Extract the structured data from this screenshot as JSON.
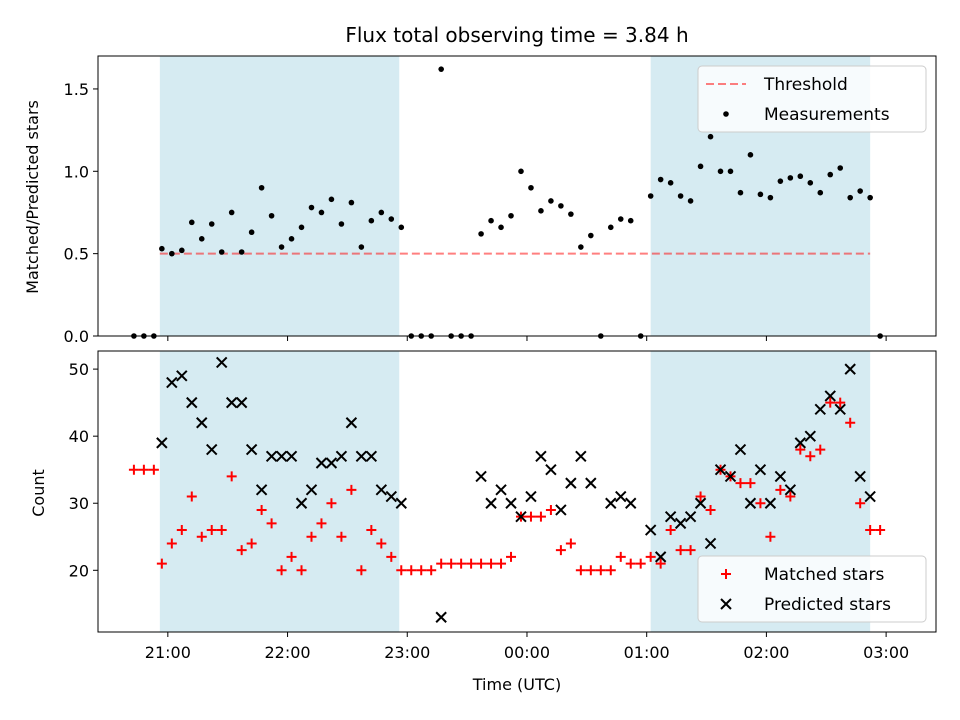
{
  "chart_data": [
    {
      "type": "scatter",
      "title": "Flux total observing time = 3.84 h",
      "ylabel": "Matched/Predicted stars",
      "xlabel": "",
      "ylim": [
        0,
        1.7
      ],
      "yticks": [
        "0.0",
        "0.5",
        "1.0",
        "1.5"
      ],
      "xlim": [
        "20:25",
        "03:25"
      ],
      "shaded_intervals": [
        [
          "20:56",
          "22:56"
        ],
        [
          "01:02",
          "02:52"
        ]
      ],
      "shade_color": "#add8e6",
      "legend_position": "upper right",
      "series": [
        {
          "name": "Threshold",
          "style": "dashed-line",
          "color": "#ff0000",
          "x": [
            "20:56",
            "02:52"
          ],
          "y": [
            0.5,
            0.5
          ]
        },
        {
          "name": "Measurements",
          "style": "dot",
          "color": "#000000",
          "points": [
            [
              "20:43",
              0
            ],
            [
              "20:48",
              0
            ],
            [
              "20:53",
              0
            ],
            [
              "20:57",
              0.53
            ],
            [
              "21:02",
              0.5
            ],
            [
              "21:07",
              0.52
            ],
            [
              "21:12",
              0.69
            ],
            [
              "21:17",
              0.59
            ],
            [
              "21:22",
              0.68
            ],
            [
              "21:27",
              0.51
            ],
            [
              "21:32",
              0.75
            ],
            [
              "21:37",
              0.51
            ],
            [
              "21:42",
              0.63
            ],
            [
              "21:47",
              0.9
            ],
            [
              "21:52",
              0.73
            ],
            [
              "21:57",
              0.54
            ],
            [
              "22:02",
              0.59
            ],
            [
              "22:07",
              0.66
            ],
            [
              "22:12",
              0.78
            ],
            [
              "22:17",
              0.75
            ],
            [
              "22:22",
              0.83
            ],
            [
              "22:27",
              0.68
            ],
            [
              "22:32",
              0.81
            ],
            [
              "22:37",
              0.54
            ],
            [
              "22:42",
              0.7
            ],
            [
              "22:47",
              0.75
            ],
            [
              "22:52",
              0.71
            ],
            [
              "22:57",
              0.66
            ],
            [
              "23:02",
              0
            ],
            [
              "23:07",
              0
            ],
            [
              "23:12",
              0
            ],
            [
              "23:17",
              1.62
            ],
            [
              "23:22",
              0
            ],
            [
              "23:27",
              0
            ],
            [
              "23:32",
              0
            ],
            [
              "23:37",
              0.62
            ],
            [
              "23:42",
              0.7
            ],
            [
              "23:47",
              0.66
            ],
            [
              "23:52",
              0.73
            ],
            [
              "23:57",
              1.0
            ],
            [
              "00:02",
              0.9
            ],
            [
              "00:07",
              0.76
            ],
            [
              "00:12",
              0.82
            ],
            [
              "00:17",
              0.79
            ],
            [
              "00:22",
              0.74
            ],
            [
              "00:27",
              0.54
            ],
            [
              "00:32",
              0.61
            ],
            [
              "00:37",
              0
            ],
            [
              "00:42",
              0.66
            ],
            [
              "00:47",
              0.71
            ],
            [
              "00:52",
              0.7
            ],
            [
              "00:57",
              0
            ],
            [
              "01:02",
              0.85
            ],
            [
              "01:07",
              0.95
            ],
            [
              "01:12",
              0.93
            ],
            [
              "01:17",
              0.85
            ],
            [
              "01:22",
              0.82
            ],
            [
              "01:27",
              1.03
            ],
            [
              "01:32",
              1.21
            ],
            [
              "01:37",
              1.0
            ],
            [
              "01:42",
              1.0
            ],
            [
              "01:47",
              0.87
            ],
            [
              "01:52",
              1.1
            ],
            [
              "01:57",
              0.86
            ],
            [
              "02:02",
              0.84
            ],
            [
              "02:07",
              0.94
            ],
            [
              "02:12",
              0.96
            ],
            [
              "02:17",
              0.97
            ],
            [
              "02:22",
              0.93
            ],
            [
              "02:27",
              0.87
            ],
            [
              "02:32",
              0.98
            ],
            [
              "02:37",
              1.02
            ],
            [
              "02:42",
              0.84
            ],
            [
              "02:47",
              0.88
            ],
            [
              "02:52",
              0.84
            ],
            [
              "02:57",
              0
            ]
          ]
        }
      ]
    },
    {
      "type": "scatter",
      "title": "",
      "xlabel": "Time (UTC)",
      "ylabel": "Count",
      "ylim": [
        10.8,
        52.7
      ],
      "yticks": [
        "20",
        "30",
        "40",
        "50"
      ],
      "xticks": [
        "21:00",
        "22:00",
        "23:00",
        "00:00",
        "01:00",
        "02:00",
        "03:00"
      ],
      "xlim": [
        "20:25",
        "03:25"
      ],
      "shaded_intervals": [
        [
          "20:56",
          "22:56"
        ],
        [
          "01:02",
          "02:52"
        ]
      ],
      "shade_color": "#add8e6",
      "legend_position": "lower right",
      "series": [
        {
          "name": "Matched stars",
          "style": "plus",
          "color": "#ff0000",
          "points": [
            [
              "20:43",
              35
            ],
            [
              "20:48",
              35
            ],
            [
              "20:53",
              35
            ],
            [
              "20:57",
              21
            ],
            [
              "21:02",
              24
            ],
            [
              "21:07",
              26
            ],
            [
              "21:12",
              31
            ],
            [
              "21:17",
              25
            ],
            [
              "21:22",
              26
            ],
            [
              "21:27",
              26
            ],
            [
              "21:32",
              34
            ],
            [
              "21:37",
              23
            ],
            [
              "21:42",
              24
            ],
            [
              "21:47",
              29
            ],
            [
              "21:52",
              27
            ],
            [
              "21:57",
              20
            ],
            [
              "22:02",
              22
            ],
            [
              "22:07",
              20
            ],
            [
              "22:12",
              25
            ],
            [
              "22:17",
              27
            ],
            [
              "22:22",
              30
            ],
            [
              "22:27",
              25
            ],
            [
              "22:32",
              32
            ],
            [
              "22:37",
              20
            ],
            [
              "22:42",
              26
            ],
            [
              "22:47",
              24
            ],
            [
              "22:52",
              22
            ],
            [
              "22:57",
              20
            ],
            [
              "23:02",
              20
            ],
            [
              "23:07",
              20
            ],
            [
              "23:12",
              20
            ],
            [
              "23:17",
              21
            ],
            [
              "23:22",
              21
            ],
            [
              "23:27",
              21
            ],
            [
              "23:32",
              21
            ],
            [
              "23:37",
              21
            ],
            [
              "23:42",
              21
            ],
            [
              "23:47",
              21
            ],
            [
              "23:52",
              22
            ],
            [
              "23:57",
              28
            ],
            [
              "00:02",
              28
            ],
            [
              "00:07",
              28
            ],
            [
              "00:12",
              29
            ],
            [
              "00:17",
              23
            ],
            [
              "00:22",
              24
            ],
            [
              "00:27",
              20
            ],
            [
              "00:32",
              20
            ],
            [
              "00:37",
              20
            ],
            [
              "00:42",
              20
            ],
            [
              "00:47",
              22
            ],
            [
              "00:52",
              21
            ],
            [
              "00:57",
              21
            ],
            [
              "01:02",
              22
            ],
            [
              "01:07",
              21
            ],
            [
              "01:12",
              26
            ],
            [
              "01:17",
              23
            ],
            [
              "01:22",
              23
            ],
            [
              "01:27",
              31
            ],
            [
              "01:32",
              29
            ],
            [
              "01:37",
              35
            ],
            [
              "01:42",
              34
            ],
            [
              "01:47",
              33
            ],
            [
              "01:52",
              33
            ],
            [
              "01:57",
              30
            ],
            [
              "02:02",
              25
            ],
            [
              "02:07",
              32
            ],
            [
              "02:12",
              31
            ],
            [
              "02:17",
              38
            ],
            [
              "02:22",
              37
            ],
            [
              "02:27",
              38
            ],
            [
              "02:32",
              45
            ],
            [
              "02:37",
              45
            ],
            [
              "02:42",
              42
            ],
            [
              "02:47",
              30
            ],
            [
              "02:52",
              26
            ],
            [
              "02:57",
              26
            ]
          ]
        },
        {
          "name": "Predicted stars",
          "style": "cross",
          "color": "#000000",
          "points": [
            [
              "20:57",
              39
            ],
            [
              "21:02",
              48
            ],
            [
              "21:07",
              49
            ],
            [
              "21:12",
              45
            ],
            [
              "21:17",
              42
            ],
            [
              "21:22",
              38
            ],
            [
              "21:27",
              51
            ],
            [
              "21:32",
              45
            ],
            [
              "21:37",
              45
            ],
            [
              "21:42",
              38
            ],
            [
              "21:47",
              32
            ],
            [
              "21:52",
              37
            ],
            [
              "21:57",
              37
            ],
            [
              "22:02",
              37
            ],
            [
              "22:07",
              30
            ],
            [
              "22:12",
              32
            ],
            [
              "22:17",
              36
            ],
            [
              "22:22",
              36
            ],
            [
              "22:27",
              37
            ],
            [
              "22:32",
              42
            ],
            [
              "22:37",
              37
            ],
            [
              "22:42",
              37
            ],
            [
              "22:47",
              32
            ],
            [
              "22:52",
              31
            ],
            [
              "22:57",
              30
            ],
            [
              "23:17",
              13
            ],
            [
              "23:37",
              34
            ],
            [
              "23:42",
              30
            ],
            [
              "23:47",
              32
            ],
            [
              "23:52",
              30
            ],
            [
              "23:57",
              28
            ],
            [
              "00:02",
              31
            ],
            [
              "00:07",
              37
            ],
            [
              "00:12",
              35
            ],
            [
              "00:17",
              29
            ],
            [
              "00:22",
              33
            ],
            [
              "00:27",
              37
            ],
            [
              "00:32",
              33
            ],
            [
              "00:42",
              30
            ],
            [
              "00:47",
              31
            ],
            [
              "00:52",
              30
            ],
            [
              "01:02",
              26
            ],
            [
              "01:07",
              22
            ],
            [
              "01:12",
              28
            ],
            [
              "01:17",
              27
            ],
            [
              "01:22",
              28
            ],
            [
              "01:27",
              30
            ],
            [
              "01:32",
              24
            ],
            [
              "01:37",
              35
            ],
            [
              "01:42",
              34
            ],
            [
              "01:47",
              38
            ],
            [
              "01:52",
              30
            ],
            [
              "01:57",
              35
            ],
            [
              "02:02",
              30
            ],
            [
              "02:07",
              34
            ],
            [
              "02:12",
              32
            ],
            [
              "02:17",
              39
            ],
            [
              "02:22",
              40
            ],
            [
              "02:27",
              44
            ],
            [
              "02:32",
              46
            ],
            [
              "02:37",
              44
            ],
            [
              "02:42",
              50
            ],
            [
              "02:47",
              34
            ],
            [
              "02:52",
              31
            ]
          ]
        }
      ]
    }
  ]
}
